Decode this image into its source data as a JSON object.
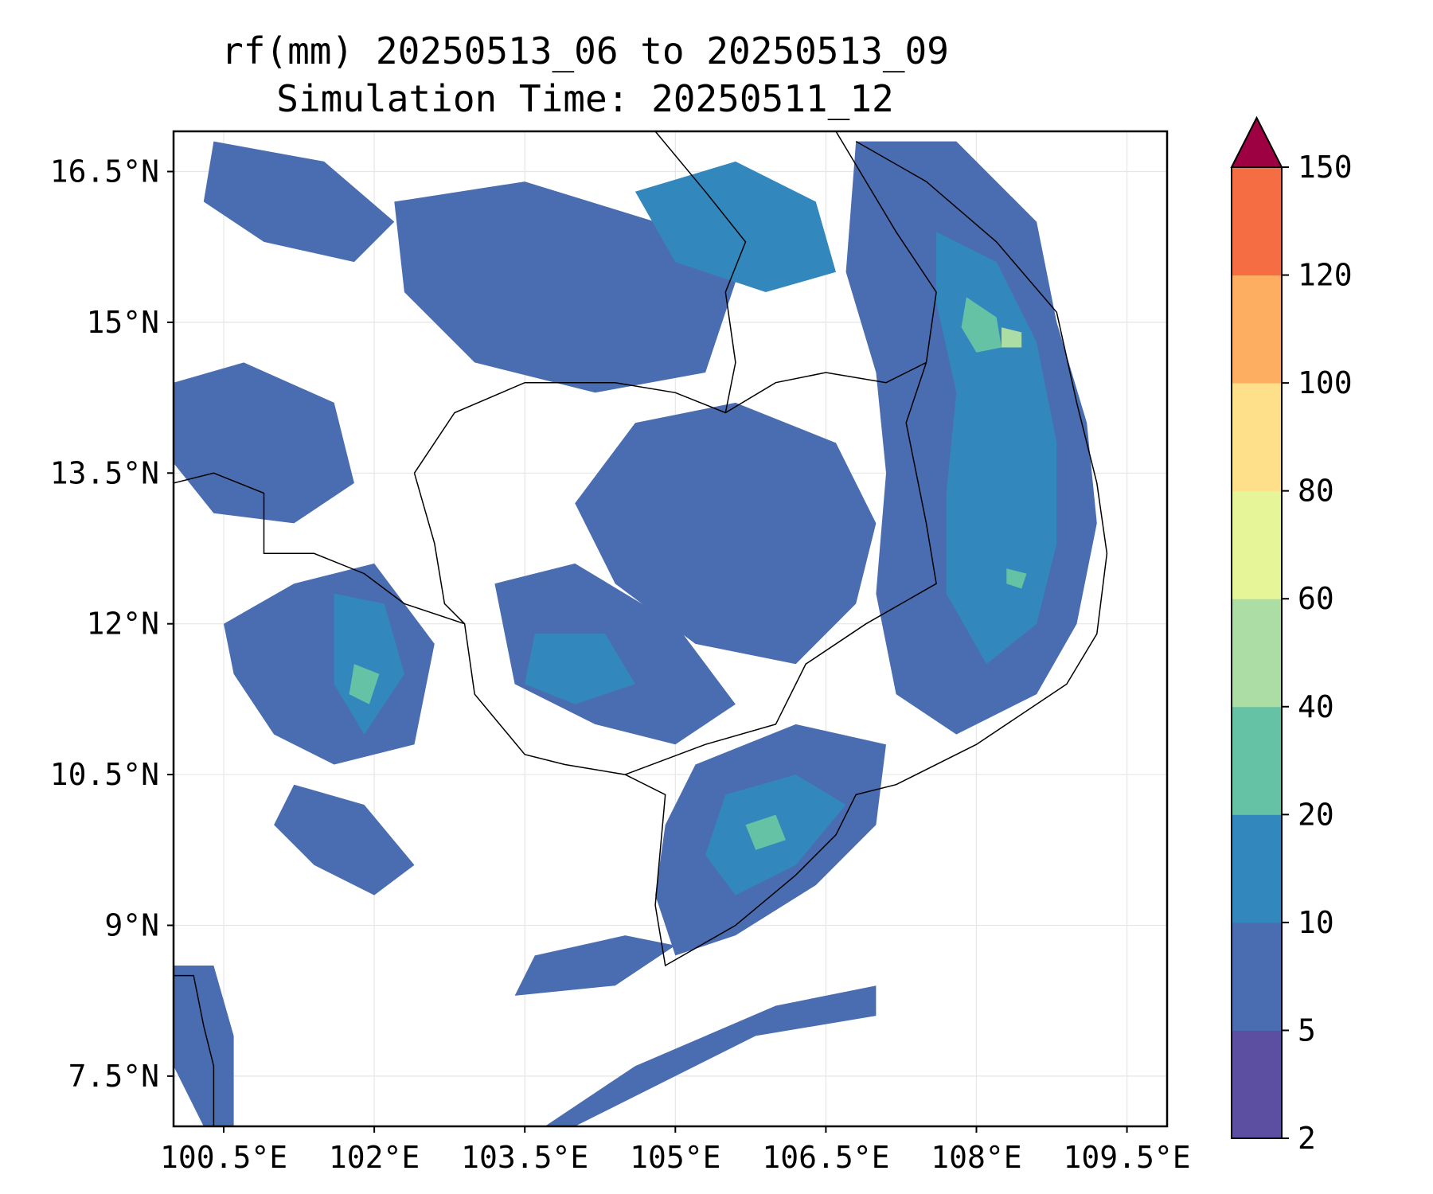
{
  "title": {
    "line1": "rf(mm) 20250513_06 to 20250513_09",
    "line2": "Simulation Time: 20250511_12"
  },
  "map": {
    "lon_range": [
      100.0,
      109.9
    ],
    "lat_range": [
      7.0,
      16.9
    ],
    "lon_ticks": [
      {
        "value": 100.5,
        "label": "100.5°E"
      },
      {
        "value": 102.0,
        "label": "102°E"
      },
      {
        "value": 103.5,
        "label": "103.5°E"
      },
      {
        "value": 105.0,
        "label": "105°E"
      },
      {
        "value": 106.5,
        "label": "106.5°E"
      },
      {
        "value": 108.0,
        "label": "108°E"
      },
      {
        "value": 109.5,
        "label": "109.5°E"
      }
    ],
    "lat_ticks": [
      {
        "value": 7.5,
        "label": "7.5°N"
      },
      {
        "value": 9.0,
        "label": "9°N"
      },
      {
        "value": 10.5,
        "label": "10.5°N"
      },
      {
        "value": 12.0,
        "label": "12°N"
      },
      {
        "value": 13.5,
        "label": "13.5°N"
      },
      {
        "value": 15.0,
        "label": "15°N"
      },
      {
        "value": 16.5,
        "label": "16.5°N"
      }
    ],
    "grid": true
  },
  "colorbar": {
    "levels": [
      {
        "value": 2,
        "label": "2"
      },
      {
        "value": 5,
        "label": "5"
      },
      {
        "value": 10,
        "label": "10"
      },
      {
        "value": 20,
        "label": "20"
      },
      {
        "value": 40,
        "label": "40"
      },
      {
        "value": 60,
        "label": "60"
      },
      {
        "value": 80,
        "label": "80"
      },
      {
        "value": 100,
        "label": "100"
      },
      {
        "value": 120,
        "label": "120"
      },
      {
        "value": 150,
        "label": "150"
      }
    ],
    "colors": [
      "#5c4fa2",
      "#4a6db1",
      "#3288bd",
      "#66c2a5",
      "#abdda4",
      "#e6f598",
      "#fee08b",
      "#fdae61",
      "#f46d43",
      "#d53e4f"
    ],
    "extend_color": "#9e0142",
    "extend": "max"
  },
  "rain_regions": [
    {
      "name": "central-vietnam-coast",
      "level": 2,
      "pts": [
        [
          106.8,
          16.8
        ],
        [
          107.8,
          16.8
        ],
        [
          108.6,
          16.0
        ],
        [
          108.8,
          15.0
        ],
        [
          109.1,
          14.0
        ],
        [
          109.2,
          13.0
        ],
        [
          109.0,
          12.0
        ],
        [
          108.6,
          11.3
        ],
        [
          107.8,
          10.9
        ],
        [
          107.2,
          11.3
        ],
        [
          107.0,
          12.3
        ],
        [
          107.1,
          13.5
        ],
        [
          107.0,
          14.5
        ],
        [
          106.7,
          15.5
        ]
      ]
    },
    {
      "name": "central-vietnam-coast-inner",
      "level": 3,
      "pts": [
        [
          107.6,
          15.9
        ],
        [
          108.2,
          15.6
        ],
        [
          108.6,
          14.8
        ],
        [
          108.8,
          13.8
        ],
        [
          108.8,
          12.8
        ],
        [
          108.6,
          12.0
        ],
        [
          108.1,
          11.6
        ],
        [
          107.7,
          12.3
        ],
        [
          107.7,
          13.3
        ],
        [
          107.8,
          14.3
        ],
        [
          107.6,
          15.2
        ]
      ]
    },
    {
      "name": "central-vietnam-peak-a",
      "level": 4,
      "pts": [
        [
          107.9,
          15.25
        ],
        [
          108.2,
          15.05
        ],
        [
          108.25,
          14.75
        ],
        [
          108.0,
          14.7
        ],
        [
          107.85,
          14.95
        ]
      ]
    },
    {
      "name": "central-vietnam-peak-b",
      "level": 5,
      "pts": [
        [
          108.25,
          14.95
        ],
        [
          108.45,
          14.9
        ],
        [
          108.45,
          14.75
        ],
        [
          108.25,
          14.75
        ]
      ]
    },
    {
      "name": "central-vietnam-peak-c",
      "level": 4,
      "pts": [
        [
          108.3,
          12.55
        ],
        [
          108.5,
          12.5
        ],
        [
          108.45,
          12.35
        ],
        [
          108.3,
          12.4
        ]
      ]
    },
    {
      "name": "central-highlands",
      "level": 2,
      "pts": [
        [
          104.6,
          14.0
        ],
        [
          105.6,
          14.2
        ],
        [
          106.6,
          13.8
        ],
        [
          107.0,
          13.0
        ],
        [
          106.8,
          12.2
        ],
        [
          106.2,
          11.6
        ],
        [
          105.2,
          11.8
        ],
        [
          104.4,
          12.4
        ],
        [
          104.0,
          13.2
        ]
      ]
    },
    {
      "name": "cambodia-south",
      "level": 2,
      "pts": [
        [
          103.2,
          12.4
        ],
        [
          104.0,
          12.6
        ],
        [
          105.0,
          12.0
        ],
        [
          105.6,
          11.2
        ],
        [
          105.0,
          10.8
        ],
        [
          104.2,
          11.0
        ],
        [
          103.4,
          11.4
        ]
      ]
    },
    {
      "name": "cambodia-south-inner",
      "level": 3,
      "pts": [
        [
          103.6,
          11.9
        ],
        [
          104.3,
          11.9
        ],
        [
          104.6,
          11.4
        ],
        [
          104.0,
          11.2
        ],
        [
          103.5,
          11.4
        ]
      ]
    },
    {
      "name": "mekong-delta",
      "level": 2,
      "pts": [
        [
          105.2,
          10.6
        ],
        [
          106.2,
          11.0
        ],
        [
          107.1,
          10.8
        ],
        [
          107.0,
          10.0
        ],
        [
          106.4,
          9.4
        ],
        [
          105.6,
          8.9
        ],
        [
          105.0,
          8.7
        ],
        [
          104.8,
          9.3
        ],
        [
          104.9,
          10.0
        ]
      ]
    },
    {
      "name": "mekong-delta-inner",
      "level": 3,
      "pts": [
        [
          105.5,
          10.3
        ],
        [
          106.2,
          10.5
        ],
        [
          106.7,
          10.2
        ],
        [
          106.2,
          9.6
        ],
        [
          105.6,
          9.3
        ],
        [
          105.3,
          9.7
        ]
      ]
    },
    {
      "name": "mekong-delta-peak",
      "level": 4,
      "pts": [
        [
          105.7,
          10.0
        ],
        [
          106.0,
          10.1
        ],
        [
          106.1,
          9.85
        ],
        [
          105.8,
          9.75
        ]
      ]
    },
    {
      "name": "thailand-east",
      "level": 2,
      "pts": [
        [
          100.5,
          12.0
        ],
        [
          101.2,
          12.4
        ],
        [
          102.0,
          12.6
        ],
        [
          102.6,
          11.8
        ],
        [
          102.4,
          10.8
        ],
        [
          101.6,
          10.6
        ],
        [
          101.0,
          10.9
        ],
        [
          100.6,
          11.5
        ]
      ]
    },
    {
      "name": "thailand-east-inner",
      "level": 3,
      "pts": [
        [
          101.6,
          12.3
        ],
        [
          102.1,
          12.2
        ],
        [
          102.3,
          11.5
        ],
        [
          101.9,
          10.9
        ],
        [
          101.6,
          11.4
        ]
      ]
    },
    {
      "name": "thailand-east-peak",
      "level": 4,
      "pts": [
        [
          101.8,
          11.6
        ],
        [
          102.05,
          11.5
        ],
        [
          101.95,
          11.2
        ],
        [
          101.75,
          11.3
        ]
      ]
    },
    {
      "name": "laos-north",
      "level": 2,
      "pts": [
        [
          102.2,
          16.2
        ],
        [
          103.5,
          16.4
        ],
        [
          104.8,
          16.0
        ],
        [
          105.6,
          15.4
        ],
        [
          105.3,
          14.5
        ],
        [
          104.2,
          14.3
        ],
        [
          103.0,
          14.6
        ],
        [
          102.3,
          15.3
        ]
      ]
    },
    {
      "name": "laos-north-inner",
      "level": 3,
      "pts": [
        [
          104.6,
          16.3
        ],
        [
          105.6,
          16.6
        ],
        [
          106.4,
          16.2
        ],
        [
          106.6,
          15.5
        ],
        [
          105.9,
          15.3
        ],
        [
          105.0,
          15.6
        ]
      ]
    },
    {
      "name": "thailand-west",
      "level": 2,
      "pts": [
        [
          100.0,
          14.4
        ],
        [
          100.7,
          14.6
        ],
        [
          101.6,
          14.2
        ],
        [
          101.8,
          13.4
        ],
        [
          101.2,
          13.0
        ],
        [
          100.4,
          13.1
        ],
        [
          100.0,
          13.6
        ]
      ]
    },
    {
      "name": "gulf-south-band",
      "level": 2,
      "pts": [
        [
          103.7,
          7.0
        ],
        [
          104.6,
          7.6
        ],
        [
          106.0,
          8.2
        ],
        [
          107.0,
          8.4
        ],
        [
          107.0,
          8.1
        ],
        [
          105.8,
          7.9
        ],
        [
          104.6,
          7.3
        ],
        [
          104.0,
          7.0
        ]
      ]
    },
    {
      "name": "gulf-band-2",
      "level": 2,
      "pts": [
        [
          103.4,
          8.3
        ],
        [
          104.4,
          8.4
        ],
        [
          105.0,
          8.8
        ],
        [
          104.5,
          8.9
        ],
        [
          103.6,
          8.7
        ]
      ]
    },
    {
      "name": "malay-coast",
      "level": 2,
      "pts": [
        [
          100.0,
          8.6
        ],
        [
          100.4,
          8.6
        ],
        [
          100.6,
          7.9
        ],
        [
          100.6,
          7.0
        ],
        [
          100.3,
          7.0
        ],
        [
          100.0,
          7.6
        ]
      ]
    },
    {
      "name": "laos-west-band",
      "level": 2,
      "pts": [
        [
          100.4,
          16.8
        ],
        [
          101.5,
          16.6
        ],
        [
          102.2,
          16.0
        ],
        [
          101.8,
          15.6
        ],
        [
          100.9,
          15.8
        ],
        [
          100.3,
          16.2
        ]
      ]
    },
    {
      "name": "west-gulf-scatter",
      "level": 2,
      "pts": [
        [
          101.2,
          10.4
        ],
        [
          101.9,
          10.2
        ],
        [
          102.4,
          9.6
        ],
        [
          102.0,
          9.3
        ],
        [
          101.4,
          9.6
        ],
        [
          101.0,
          10.0
        ]
      ]
    }
  ],
  "coastlines": [
    {
      "name": "vietnam-coast",
      "pts": [
        [
          106.8,
          16.8
        ],
        [
          107.5,
          16.4
        ],
        [
          108.2,
          15.8
        ],
        [
          108.8,
          15.1
        ],
        [
          109.0,
          14.2
        ],
        [
          109.2,
          13.4
        ],
        [
          109.3,
          12.7
        ],
        [
          109.2,
          11.9
        ],
        [
          108.9,
          11.4
        ],
        [
          108.0,
          10.8
        ],
        [
          107.2,
          10.4
        ],
        [
          106.8,
          10.3
        ],
        [
          106.6,
          9.9
        ],
        [
          106.2,
          9.5
        ],
        [
          105.6,
          9.0
        ],
        [
          104.9,
          8.6
        ],
        [
          104.8,
          9.2
        ],
        [
          104.9,
          10.3
        ],
        [
          104.5,
          10.5
        ],
        [
          103.9,
          10.6
        ],
        [
          103.5,
          10.7
        ],
        [
          103.0,
          11.3
        ],
        [
          102.9,
          12.0
        ],
        [
          102.3,
          12.2
        ],
        [
          101.9,
          12.5
        ],
        [
          101.4,
          12.7
        ],
        [
          100.9,
          12.7
        ],
        [
          100.9,
          13.3
        ],
        [
          100.4,
          13.5
        ],
        [
          100.0,
          13.4
        ]
      ]
    },
    {
      "name": "malay-coast-line",
      "pts": [
        [
          100.0,
          8.5
        ],
        [
          100.2,
          8.5
        ],
        [
          100.3,
          8.0
        ],
        [
          100.4,
          7.6
        ],
        [
          100.4,
          7.0
        ]
      ]
    }
  ],
  "borders": [
    {
      "name": "cambodia-north-border",
      "pts": [
        [
          102.4,
          13.5
        ],
        [
          102.8,
          14.1
        ],
        [
          103.5,
          14.4
        ],
        [
          104.4,
          14.4
        ],
        [
          105.0,
          14.3
        ],
        [
          105.5,
          14.1
        ],
        [
          106.0,
          14.4
        ],
        [
          106.5,
          14.5
        ],
        [
          107.1,
          14.4
        ],
        [
          107.5,
          14.6
        ]
      ]
    },
    {
      "name": "cambodia-vietnam-border",
      "pts": [
        [
          107.5,
          14.6
        ],
        [
          107.3,
          14.0
        ],
        [
          107.5,
          13.0
        ],
        [
          107.6,
          12.4
        ],
        [
          106.9,
          12.0
        ],
        [
          106.3,
          11.6
        ],
        [
          106.0,
          11.0
        ],
        [
          105.3,
          10.8
        ],
        [
          104.5,
          10.5
        ]
      ]
    },
    {
      "name": "laos-vietnam-border",
      "pts": [
        [
          107.5,
          14.6
        ],
        [
          107.6,
          15.3
        ],
        [
          107.2,
          15.9
        ],
        [
          106.9,
          16.4
        ],
        [
          106.6,
          16.9
        ]
      ]
    },
    {
      "name": "laos-thailand-border",
      "pts": [
        [
          105.5,
          14.1
        ],
        [
          105.6,
          14.6
        ],
        [
          105.5,
          15.3
        ],
        [
          105.7,
          15.8
        ],
        [
          105.3,
          16.3
        ],
        [
          104.8,
          16.9
        ]
      ]
    },
    {
      "name": "thai-cambodia-border-west",
      "pts": [
        [
          102.4,
          13.5
        ],
        [
          102.6,
          12.8
        ],
        [
          102.7,
          12.2
        ],
        [
          102.9,
          12.0
        ]
      ]
    }
  ]
}
